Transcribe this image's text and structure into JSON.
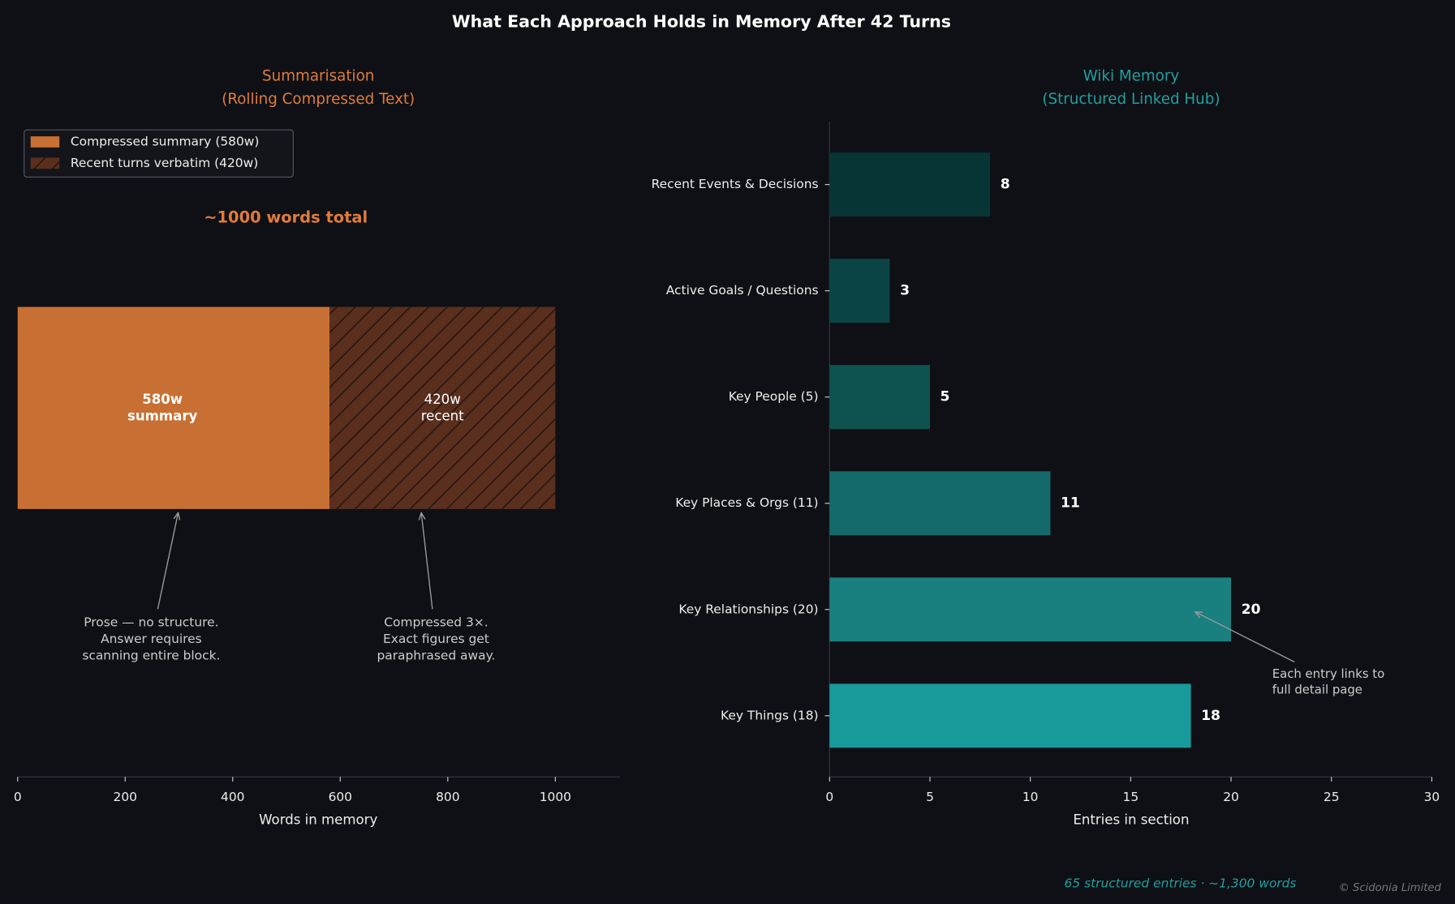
{
  "title": "What Each Approach Holds in Memory After 42 Turns",
  "chart_data": [
    {
      "type": "stacked_barh",
      "title": "Summarisation\n(Rolling Compressed Text)",
      "title_color": "#e07b3c",
      "series": [
        {
          "name": "Compressed summary (580w)",
          "color": "#c87033",
          "values": [
            580
          ]
        },
        {
          "name": "Recent turns verbatim (420w)",
          "color": "#5a2f1e",
          "hatch": true,
          "values": [
            420
          ]
        }
      ],
      "value_labels": [
        "580w\nsummary",
        "420w\nrecent"
      ],
      "total_label": "~1000 words total",
      "annotations": [
        "Prose — no structure.\nAnswer requires\nscanning entire block.",
        "Compressed 3×.\nExact figures get\nparaphrased away."
      ],
      "xlabel": "Words in memory",
      "xlim": [
        0,
        1120
      ],
      "xticks": [
        0,
        200,
        400,
        600,
        800,
        1000
      ],
      "legend": "upper left"
    },
    {
      "type": "barh",
      "title": "Wiki Memory\n(Structured Linked Hub)",
      "title_color": "#20a0a0",
      "categories": [
        "Recent Events & Decisions",
        "Active Goals / Questions",
        "Key People (5)",
        "Key Places & Orgs (11)",
        "Key Relationships (20)",
        "Key Things (18)"
      ],
      "values": [
        8,
        3,
        5,
        11,
        20,
        18
      ],
      "colors": [
        "#073535",
        "#0b4444",
        "#0e5350",
        "#146a6a",
        "#1a7f7f",
        "#18999a"
      ],
      "annotations": [
        "Each entry links to\nfull detail page"
      ],
      "xlabel": "Entries in section",
      "xlim": [
        0,
        30
      ],
      "xticks": [
        0,
        5,
        10,
        15,
        20,
        25,
        30
      ],
      "footer": "65 structured entries  ·  ~1,300 words"
    }
  ],
  "copyright": "© Scidonia Limited"
}
